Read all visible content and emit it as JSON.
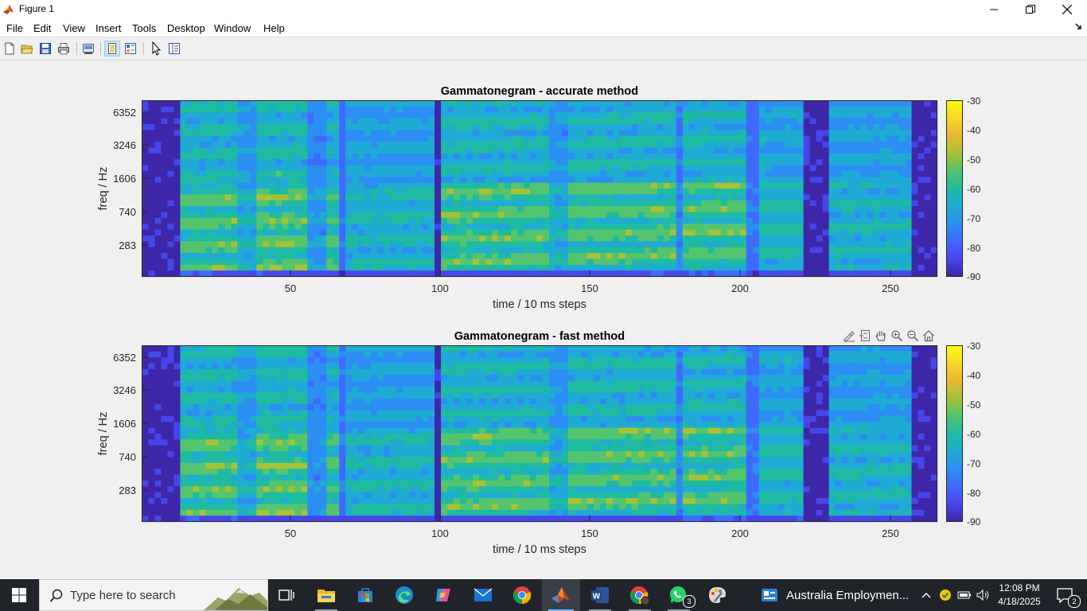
{
  "window": {
    "title": "Figure 1",
    "controls": {
      "minimize": "minimize",
      "maximize": "restore",
      "close": "close"
    }
  },
  "menu": {
    "items": [
      "File",
      "Edit",
      "View",
      "Insert",
      "Tools",
      "Desktop",
      "Window",
      "Help"
    ]
  },
  "toolbar": {
    "icons": [
      "new-figure-icon",
      "open-file-icon",
      "save-figure-icon",
      "print-figure-icon",
      "link-plot-icon",
      "hide-plot-tools-icon",
      "show-plot-tools-icon",
      "pointer-icon",
      "property-inspector-icon"
    ]
  },
  "figure": {
    "axes": [
      {
        "title": "Gammatonegram - accurate method",
        "xlabel": "time / 10 ms steps",
        "ylabel": "freq / Hz",
        "xticks": [
          "50",
          "100",
          "150",
          "200",
          "250"
        ],
        "yticks": [
          "6352",
          "3246",
          "1606",
          "740",
          "283"
        ],
        "colorbar_ticks": [
          "-30",
          "-40",
          "-50",
          "-60",
          "-70",
          "-80",
          "-90"
        ]
      },
      {
        "title": "Gammatonegram - fast method",
        "xlabel": "time / 10 ms steps",
        "ylabel": "freq / Hz",
        "xticks": [
          "50",
          "100",
          "150",
          "200",
          "250"
        ],
        "yticks": [
          "6352",
          "3246",
          "1606",
          "740",
          "283"
        ],
        "colorbar_ticks": [
          "-30",
          "-40",
          "-50",
          "-60",
          "-70",
          "-80",
          "-90"
        ]
      }
    ],
    "axes_toolbar_icons": [
      "brush-icon",
      "data-tips-icon",
      "pan-icon",
      "zoom-in-icon",
      "zoom-out-icon",
      "home-icon"
    ],
    "colormap": [
      "#3e26a8",
      "#4746eb",
      "#3e6afe",
      "#2c8ef2",
      "#1fabd3",
      "#1ebba1",
      "#54c46f",
      "#a6c236",
      "#e5b734",
      "#fbd729",
      "#f9fb0e"
    ]
  },
  "taskbar": {
    "search_placeholder": "Type here to search",
    "apps": [
      "task-view-icon",
      "file-explorer-icon",
      "microsoft-store-icon",
      "edge-icon",
      "copilot-icon",
      "mail-icon",
      "chrome-icon",
      "matlab-icon",
      "word-icon",
      "chrome-profile-icon",
      "whatsapp-icon",
      "paint-icon"
    ],
    "whatsapp_badge": "3",
    "pinned_window_title": "Australia Employmen...",
    "clock_time": "12:08 PM",
    "clock_date": "4/18/2025",
    "notification_badge": "2"
  }
}
